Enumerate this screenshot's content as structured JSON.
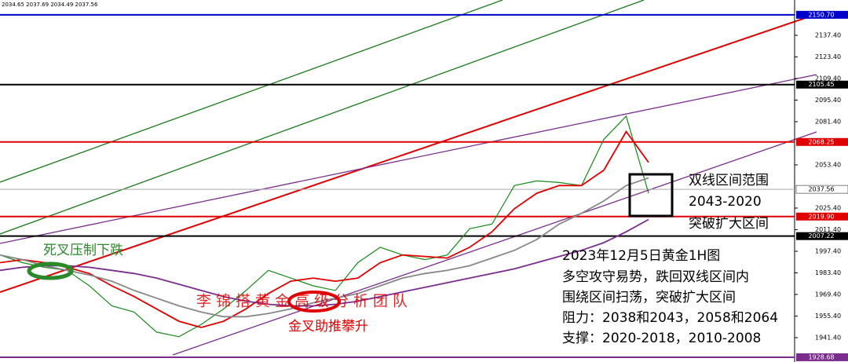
{
  "chart_data": {
    "type": "line",
    "title": "2034.65 2037.69 2034.49 2037.56",
    "ylim": [
      1925.6,
      2160.3
    ],
    "yticks": [
      {
        "value": 1941.4,
        "label": "1941.40"
      },
      {
        "value": 1955.4,
        "label": "1955.40"
      },
      {
        "value": 1969.4,
        "label": "1969.40"
      },
      {
        "value": 1983.4,
        "label": "1983.40"
      },
      {
        "value": 1997.4,
        "label": "1997.40"
      },
      {
        "value": 2011.4,
        "label": "2011.40"
      },
      {
        "value": 2025.4,
        "label": "2025.40"
      },
      {
        "value": 2053.4,
        "label": "2053.40"
      },
      {
        "value": 2081.4,
        "label": "2081.40"
      },
      {
        "value": 2095.4,
        "label": "2095.40"
      },
      {
        "value": 2109.4,
        "label": "2109.40"
      },
      {
        "value": 2123.4,
        "label": "2123.40"
      },
      {
        "value": 2137.4,
        "label": "2137.40"
      }
    ],
    "levels": [
      {
        "value": {
          "value": 2150.7,
          "label": "2150.70"
        },
        "color": "#0000cc"
      },
      {
        "value": 2105.45,
        "color": "#000000"
      },
      {
        "value": 2068.25,
        "color": "#e00000"
      },
      {
        "value": 2037.56,
        "color": "#aaaaaa"
      },
      {
        "value": {
          "value": 2019.9,
          "label": "2019.90"
        },
        "color": "#e00000"
      },
      {
        "value": 2007.22,
        "color": "#000000"
      },
      {
        "value": 1928.68,
        "color": "#7b2d8e"
      }
    ],
    "series": [
      {
        "color": "#1a8a1a",
        "values": [
          1995,
          1990,
          1987,
          1985,
          1975,
          1962,
          1958,
          1945,
          1942,
          1950,
          1960,
          1972,
          1985,
          1980,
          1975,
          1972,
          1990,
          2000,
          1995,
          1992,
          1995,
          2012,
          2015,
          2040,
          2043,
          2042,
          2040,
          2070,
          2085,
          2035
        ]
      },
      {
        "color": "#e00000",
        "values": [
          1990,
          1992,
          1990,
          1987,
          1983,
          1975,
          1968,
          1960,
          1952,
          1948,
          1952,
          1960,
          1970,
          1978,
          1980,
          1978,
          1980,
          1990,
          1995,
          1994,
          1993,
          2000,
          2010,
          2025,
          2035,
          2040,
          2040,
          2050,
          2075,
          2055
        ]
      },
      {
        "color": "#888888",
        "values": [
          1995,
          1992,
          1988,
          1985,
          1982,
          1978,
          1972,
          1967,
          1962,
          1958,
          1955,
          1955,
          1957,
          1960,
          1964,
          1967,
          1970,
          1975,
          1980,
          1983,
          1985,
          1988,
          1993,
          1998,
          2005,
          2015,
          2022,
          2030,
          2040,
          2045
        ]
      },
      {
        "color": "#7b2d8e",
        "values": [
          1985,
          1987,
          1988,
          1988,
          1987,
          1985,
          1983,
          1980,
          1976,
          1972,
          1968,
          1965,
          1963,
          1962,
          1962,
          1963,
          1965,
          1968,
          1971,
          1974,
          1977,
          1980,
          1983,
          1986,
          1990,
          1994,
          1998,
          2003,
          2010,
          2018
        ]
      }
    ],
    "annotations": {
      "death_cross": "死叉压制下跌",
      "golden_cross": "金叉助推攀升",
      "watermark": "李锦搭黄金高级分析团队",
      "range": [
        "双线区间范围",
        "2043-2020",
        "突破扩大区间"
      ],
      "summary": [
        "2023年12月5日黄金1H图",
        "多空攻守易势，跌回双线区间内",
        "围绕区间扫荡，突破扩大区间",
        "阻力：2038和2043，2058和2064",
        "支撑：2020-2018，2010-2008"
      ]
    }
  }
}
